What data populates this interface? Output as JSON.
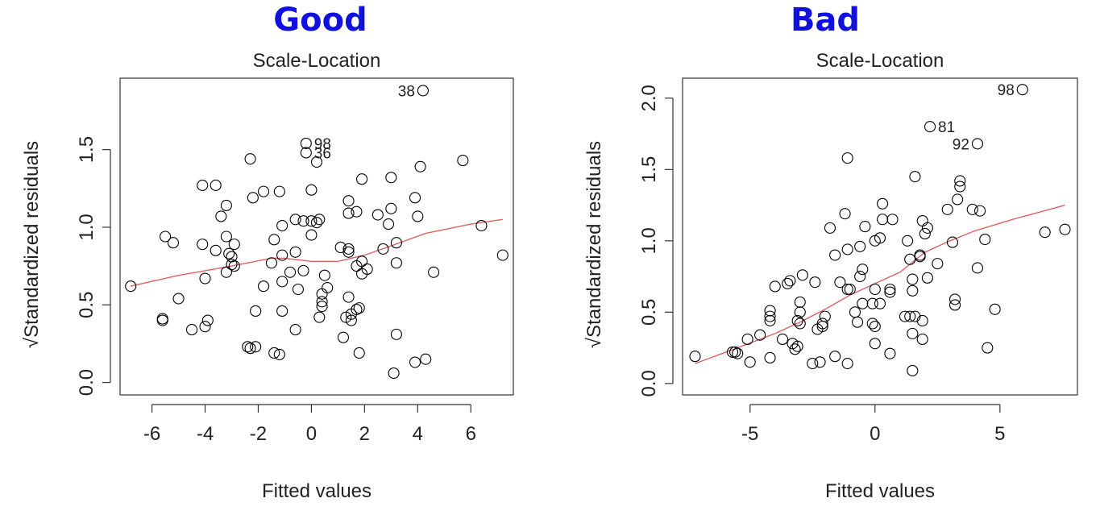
{
  "headings": {
    "left": "Good",
    "right": "Bad"
  },
  "colors": {
    "heading": "#1111dd",
    "smooth_line": "#e06060",
    "points": "#000000"
  },
  "chart_data": [
    {
      "type": "scatter",
      "title": "Scale-Location",
      "xlabel": "Fitted values",
      "ylabel": "√Standardized residuals",
      "xlim": [
        -7.2,
        7.6
      ],
      "ylim": [
        -0.08,
        1.96
      ],
      "xticks": [
        -6,
        -4,
        -2,
        0,
        2,
        4,
        6
      ],
      "yticks": [
        0.0,
        0.5,
        1.0,
        1.5
      ],
      "ytick_labels": [
        "0.0",
        "0.5",
        "1.0",
        "1.5"
      ],
      "grid": false,
      "points": [
        [
          4.2,
          1.88
        ],
        [
          -0.2,
          1.54
        ],
        [
          -0.2,
          1.48
        ],
        [
          0.2,
          1.42
        ],
        [
          -2.3,
          1.44
        ],
        [
          5.7,
          1.43
        ],
        [
          4.1,
          1.39
        ],
        [
          3.0,
          1.32
        ],
        [
          1.9,
          1.31
        ],
        [
          -4.1,
          1.27
        ],
        [
          -3.6,
          1.27
        ],
        [
          -1.8,
          1.23
        ],
        [
          -1.2,
          1.23
        ],
        [
          0.0,
          1.24
        ],
        [
          -2.2,
          1.19
        ],
        [
          1.4,
          1.17
        ],
        [
          3.9,
          1.19
        ],
        [
          -3.2,
          1.14
        ],
        [
          3.0,
          1.12
        ],
        [
          1.4,
          1.09
        ],
        [
          1.7,
          1.1
        ],
        [
          2.5,
          1.08
        ],
        [
          4.0,
          1.07
        ],
        [
          -3.4,
          1.07
        ],
        [
          -0.6,
          1.05
        ],
        [
          -0.3,
          1.04
        ],
        [
          0.0,
          1.04
        ],
        [
          0.3,
          1.05
        ],
        [
          0.2,
          1.03
        ],
        [
          -1.1,
          1.01
        ],
        [
          2.9,
          1.02
        ],
        [
          6.4,
          1.01
        ],
        [
          0.0,
          0.95
        ],
        [
          -5.5,
          0.94
        ],
        [
          -5.2,
          0.9
        ],
        [
          -4.1,
          0.89
        ],
        [
          -3.2,
          0.94
        ],
        [
          -2.9,
          0.89
        ],
        [
          -1.4,
          0.92
        ],
        [
          3.2,
          0.9
        ],
        [
          -3.6,
          0.85
        ],
        [
          -3.1,
          0.83
        ],
        [
          -3.0,
          0.81
        ],
        [
          -0.6,
          0.84
        ],
        [
          1.1,
          0.87
        ],
        [
          1.4,
          0.86
        ],
        [
          1.4,
          0.84
        ],
        [
          2.7,
          0.86
        ],
        [
          7.2,
          0.82
        ],
        [
          -1.5,
          0.77
        ],
        [
          -1.1,
          0.82
        ],
        [
          3.2,
          0.77
        ],
        [
          -3.0,
          0.76
        ],
        [
          -2.9,
          0.75
        ],
        [
          -3.2,
          0.71
        ],
        [
          -0.8,
          0.71
        ],
        [
          -0.3,
          0.72
        ],
        [
          1.7,
          0.75
        ],
        [
          1.9,
          0.78
        ],
        [
          2.1,
          0.73
        ],
        [
          1.9,
          0.7
        ],
        [
          4.6,
          0.71
        ],
        [
          -6.8,
          0.62
        ],
        [
          -4.0,
          0.67
        ],
        [
          -1.8,
          0.62
        ],
        [
          -1.1,
          0.65
        ],
        [
          -0.5,
          0.6
        ],
        [
          0.5,
          0.69
        ],
        [
          0.6,
          0.61
        ],
        [
          0.4,
          0.57
        ],
        [
          1.4,
          0.55
        ],
        [
          0.4,
          0.52
        ],
        [
          0.4,
          0.49
        ],
        [
          -5.0,
          0.54
        ],
        [
          -5.6,
          0.41
        ],
        [
          -5.6,
          0.4
        ],
        [
          -3.9,
          0.4
        ],
        [
          -4.0,
          0.36
        ],
        [
          -4.5,
          0.34
        ],
        [
          -2.1,
          0.46
        ],
        [
          -1.1,
          0.46
        ],
        [
          1.7,
          0.47
        ],
        [
          1.8,
          0.48
        ],
        [
          1.5,
          0.44
        ],
        [
          1.3,
          0.42
        ],
        [
          1.5,
          0.4
        ],
        [
          0.3,
          0.42
        ],
        [
          -0.6,
          0.34
        ],
        [
          1.2,
          0.29
        ],
        [
          3.2,
          0.31
        ],
        [
          -2.4,
          0.23
        ],
        [
          -2.3,
          0.22
        ],
        [
          -2.1,
          0.23
        ],
        [
          -1.4,
          0.19
        ],
        [
          -1.2,
          0.18
        ],
        [
          1.8,
          0.19
        ],
        [
          3.9,
          0.13
        ],
        [
          4.3,
          0.15
        ],
        [
          3.1,
          0.06
        ]
      ],
      "labels": [
        {
          "x": 4.2,
          "y": 1.88,
          "text": "38",
          "side": "left"
        },
        {
          "x": -0.2,
          "y": 1.54,
          "text": "98",
          "side": "right"
        },
        {
          "x": -0.2,
          "y": 1.48,
          "text": "36",
          "side": "right"
        }
      ],
      "smooth": [
        [
          -6.8,
          0.62
        ],
        [
          -5,
          0.69
        ],
        [
          -3,
          0.75
        ],
        [
          -1.5,
          0.8
        ],
        [
          -1,
          0.8
        ],
        [
          0,
          0.78
        ],
        [
          1,
          0.78
        ],
        [
          2,
          0.82
        ],
        [
          3,
          0.88
        ],
        [
          4.3,
          0.96
        ],
        [
          6,
          1.02
        ],
        [
          7.2,
          1.05
        ]
      ]
    },
    {
      "type": "scatter",
      "title": "Scale-Location",
      "xlabel": "Fitted values",
      "ylabel": "√Standardized residuals",
      "xlim": [
        -7.7,
        8.1
      ],
      "ylim": [
        -0.08,
        2.14
      ],
      "xticks": [
        -5,
        0,
        5
      ],
      "yticks": [
        0.0,
        0.5,
        1.0,
        1.5,
        2.0
      ],
      "ytick_labels": [
        "0.0",
        "0.5",
        "1.0",
        "1.5",
        "2.0"
      ],
      "grid": false,
      "points": [
        [
          5.9,
          2.06
        ],
        [
          2.2,
          1.8
        ],
        [
          4.1,
          1.68
        ],
        [
          -1.1,
          1.58
        ],
        [
          1.6,
          1.45
        ],
        [
          3.4,
          1.42
        ],
        [
          3.4,
          1.38
        ],
        [
          3.3,
          1.29
        ],
        [
          2.9,
          1.22
        ],
        [
          3.9,
          1.22
        ],
        [
          4.2,
          1.21
        ],
        [
          0.3,
          1.26
        ],
        [
          -1.2,
          1.19
        ],
        [
          0.3,
          1.15
        ],
        [
          0.7,
          1.15
        ],
        [
          1.9,
          1.14
        ],
        [
          2.1,
          1.09
        ],
        [
          -1.8,
          1.09
        ],
        [
          -0.4,
          1.1
        ],
        [
          0.2,
          1.02
        ],
        [
          0.0,
          1.0
        ],
        [
          1.3,
          1.0
        ],
        [
          3.1,
          0.99
        ],
        [
          4.4,
          1.01
        ],
        [
          6.8,
          1.06
        ],
        [
          7.6,
          1.08
        ],
        [
          2.0,
          1.05
        ],
        [
          -1.6,
          0.9
        ],
        [
          -1.1,
          0.94
        ],
        [
          -0.6,
          0.96
        ],
        [
          1.4,
          0.87
        ],
        [
          1.8,
          0.9
        ],
        [
          1.8,
          0.89
        ],
        [
          2.5,
          0.84
        ],
        [
          4.1,
          0.81
        ],
        [
          -0.5,
          0.8
        ],
        [
          -0.6,
          0.75
        ],
        [
          -3.4,
          0.72
        ],
        [
          -2.9,
          0.76
        ],
        [
          -3.5,
          0.7
        ],
        [
          -2.4,
          0.71
        ],
        [
          -1.4,
          0.71
        ],
        [
          -1.1,
          0.66
        ],
        [
          -1.0,
          0.66
        ],
        [
          1.5,
          0.73
        ],
        [
          2.1,
          0.74
        ],
        [
          0.0,
          0.66
        ],
        [
          0.6,
          0.66
        ],
        [
          0.6,
          0.64
        ],
        [
          1.5,
          0.65
        ],
        [
          -4.0,
          0.68
        ],
        [
          -3.0,
          0.57
        ],
        [
          -0.5,
          0.56
        ],
        [
          -0.1,
          0.56
        ],
        [
          0.2,
          0.56
        ],
        [
          3.2,
          0.59
        ],
        [
          3.2,
          0.55
        ],
        [
          4.8,
          0.52
        ],
        [
          -4.2,
          0.51
        ],
        [
          -4.2,
          0.47
        ],
        [
          -4.2,
          0.44
        ],
        [
          -3.0,
          0.5
        ],
        [
          -3.1,
          0.44
        ],
        [
          -3.0,
          0.42
        ],
        [
          -2.0,
          0.47
        ],
        [
          -2.1,
          0.42
        ],
        [
          -0.1,
          0.42
        ],
        [
          0.0,
          0.4
        ],
        [
          -0.8,
          0.5
        ],
        [
          -0.7,
          0.43
        ],
        [
          1.2,
          0.47
        ],
        [
          1.4,
          0.47
        ],
        [
          1.6,
          0.47
        ],
        [
          1.9,
          0.44
        ],
        [
          -5.1,
          0.31
        ],
        [
          -4.6,
          0.34
        ],
        [
          -3.7,
          0.31
        ],
        [
          -3.3,
          0.28
        ],
        [
          -2.3,
          0.38
        ],
        [
          -2.1,
          0.4
        ],
        [
          0.0,
          0.28
        ],
        [
          1.5,
          0.35
        ],
        [
          1.9,
          0.31
        ],
        [
          -7.2,
          0.19
        ],
        [
          -5.7,
          0.22
        ],
        [
          -5.6,
          0.22
        ],
        [
          -5.5,
          0.21
        ],
        [
          -5.0,
          0.15
        ],
        [
          -4.2,
          0.18
        ],
        [
          -3.2,
          0.24
        ],
        [
          -3.1,
          0.26
        ],
        [
          -2.5,
          0.14
        ],
        [
          -2.2,
          0.15
        ],
        [
          -1.6,
          0.19
        ],
        [
          -1.1,
          0.14
        ],
        [
          0.6,
          0.21
        ],
        [
          1.5,
          0.09
        ],
        [
          4.5,
          0.25
        ]
      ],
      "labels": [
        {
          "x": 5.9,
          "y": 2.06,
          "text": "98",
          "side": "left"
        },
        {
          "x": 2.2,
          "y": 1.8,
          "text": "81",
          "side": "right"
        },
        {
          "x": 4.1,
          "y": 1.68,
          "text": "92",
          "side": "left"
        }
      ],
      "smooth": [
        [
          -7.2,
          0.14
        ],
        [
          -5.5,
          0.25
        ],
        [
          -4,
          0.35
        ],
        [
          -3,
          0.43
        ],
        [
          -2,
          0.52
        ],
        [
          -1,
          0.62
        ],
        [
          0,
          0.7
        ],
        [
          1,
          0.78
        ],
        [
          2,
          0.92
        ],
        [
          3,
          1.0
        ],
        [
          4,
          1.07
        ],
        [
          5.5,
          1.15
        ],
        [
          7.6,
          1.25
        ]
      ]
    }
  ]
}
